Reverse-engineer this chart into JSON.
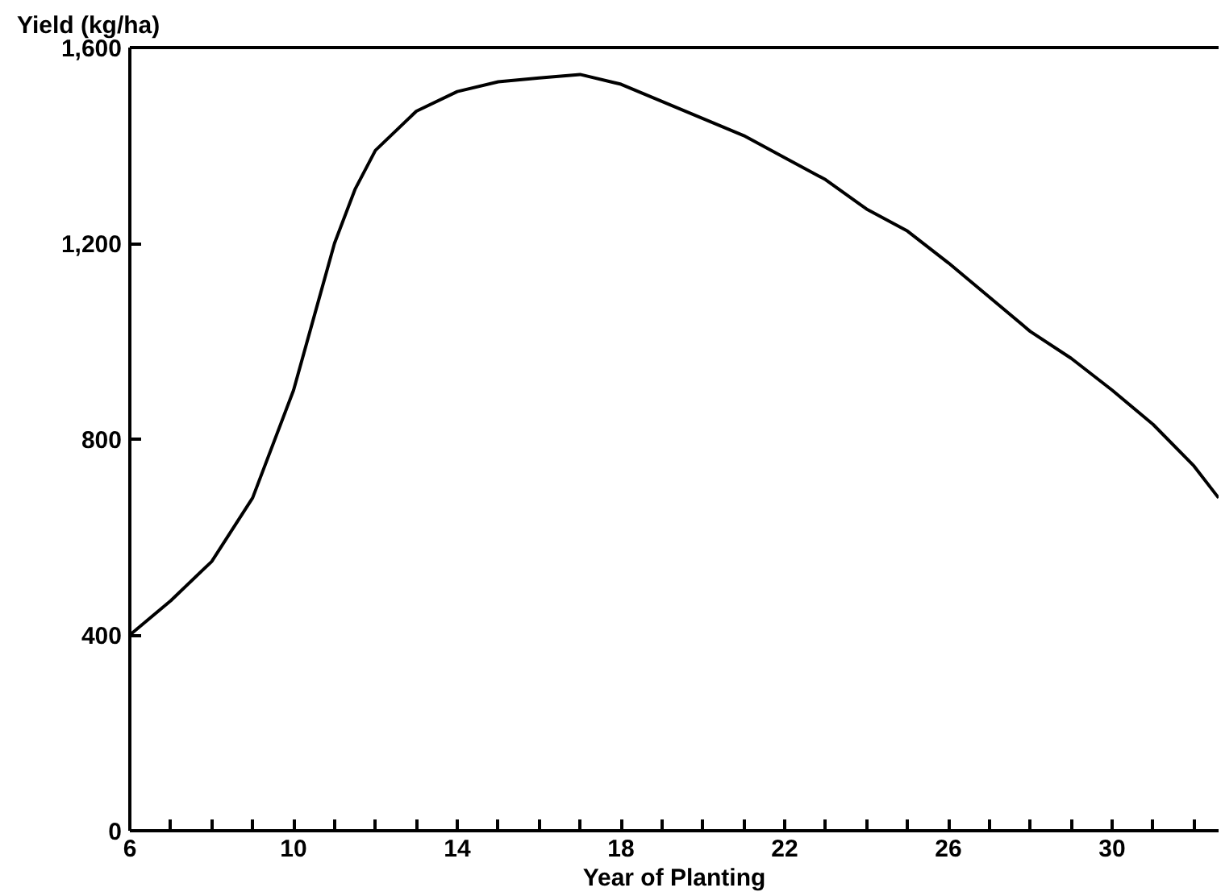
{
  "chart_data": {
    "type": "line",
    "xlabel": "Year of Planting",
    "ylabel": "Yield (kg/ha)",
    "x": [
      6,
      7,
      8,
      9,
      10,
      10.5,
      11,
      11.5,
      12,
      13,
      14,
      15,
      16,
      17,
      18,
      19,
      20,
      21,
      22,
      23,
      24,
      25,
      26,
      27,
      28,
      29,
      30,
      31,
      32,
      32.6
    ],
    "series": [
      {
        "color": "#000000",
        "values": [
          400,
          470,
          550,
          680,
          900,
          1050,
          1200,
          1310,
          1390,
          1470,
          1510,
          1530,
          1538,
          1545,
          1525,
          1490,
          1455,
          1420,
          1375,
          1330,
          1270,
          1225,
          1160,
          1090,
          1020,
          965,
          900,
          830,
          745,
          680
        ]
      }
    ],
    "xlim": [
      6,
      32.6
    ],
    "xticks": [
      6,
      {
        "value": 7,
        "label": null
      },
      {
        "value": 8,
        "label": null
      },
      {
        "value": 9,
        "label": null
      },
      10,
      {
        "value": 11,
        "label": null
      },
      {
        "value": 12,
        "label": null
      },
      {
        "value": 13,
        "label": null
      },
      14,
      {
        "value": 15,
        "label": null
      },
      {
        "value": 16,
        "label": null
      },
      {
        "value": 17,
        "label": null
      },
      18,
      {
        "value": 19,
        "label": null
      },
      {
        "value": 20,
        "label": null
      },
      {
        "value": 21,
        "label": null
      },
      22,
      {
        "value": 23,
        "label": null
      },
      {
        "value": 24,
        "label": null
      },
      {
        "value": 25,
        "label": null
      },
      26,
      {
        "value": 27,
        "label": null
      },
      {
        "value": 28,
        "label": null
      },
      {
        "value": 29,
        "label": null
      },
      30,
      {
        "value": 31,
        "label": null
      },
      {
        "value": 32,
        "label": null
      }
    ],
    "ylim": [
      0,
      1600
    ],
    "yticks": [
      {
        "value": 0,
        "label": "0"
      },
      {
        "value": 400,
        "label": "400"
      },
      {
        "value": 800,
        "label": "800"
      },
      {
        "value": 1200,
        "label": "1,200"
      },
      {
        "value": 1600,
        "label": "1,600"
      }
    ],
    "grid": false,
    "line_style": "solid"
  }
}
